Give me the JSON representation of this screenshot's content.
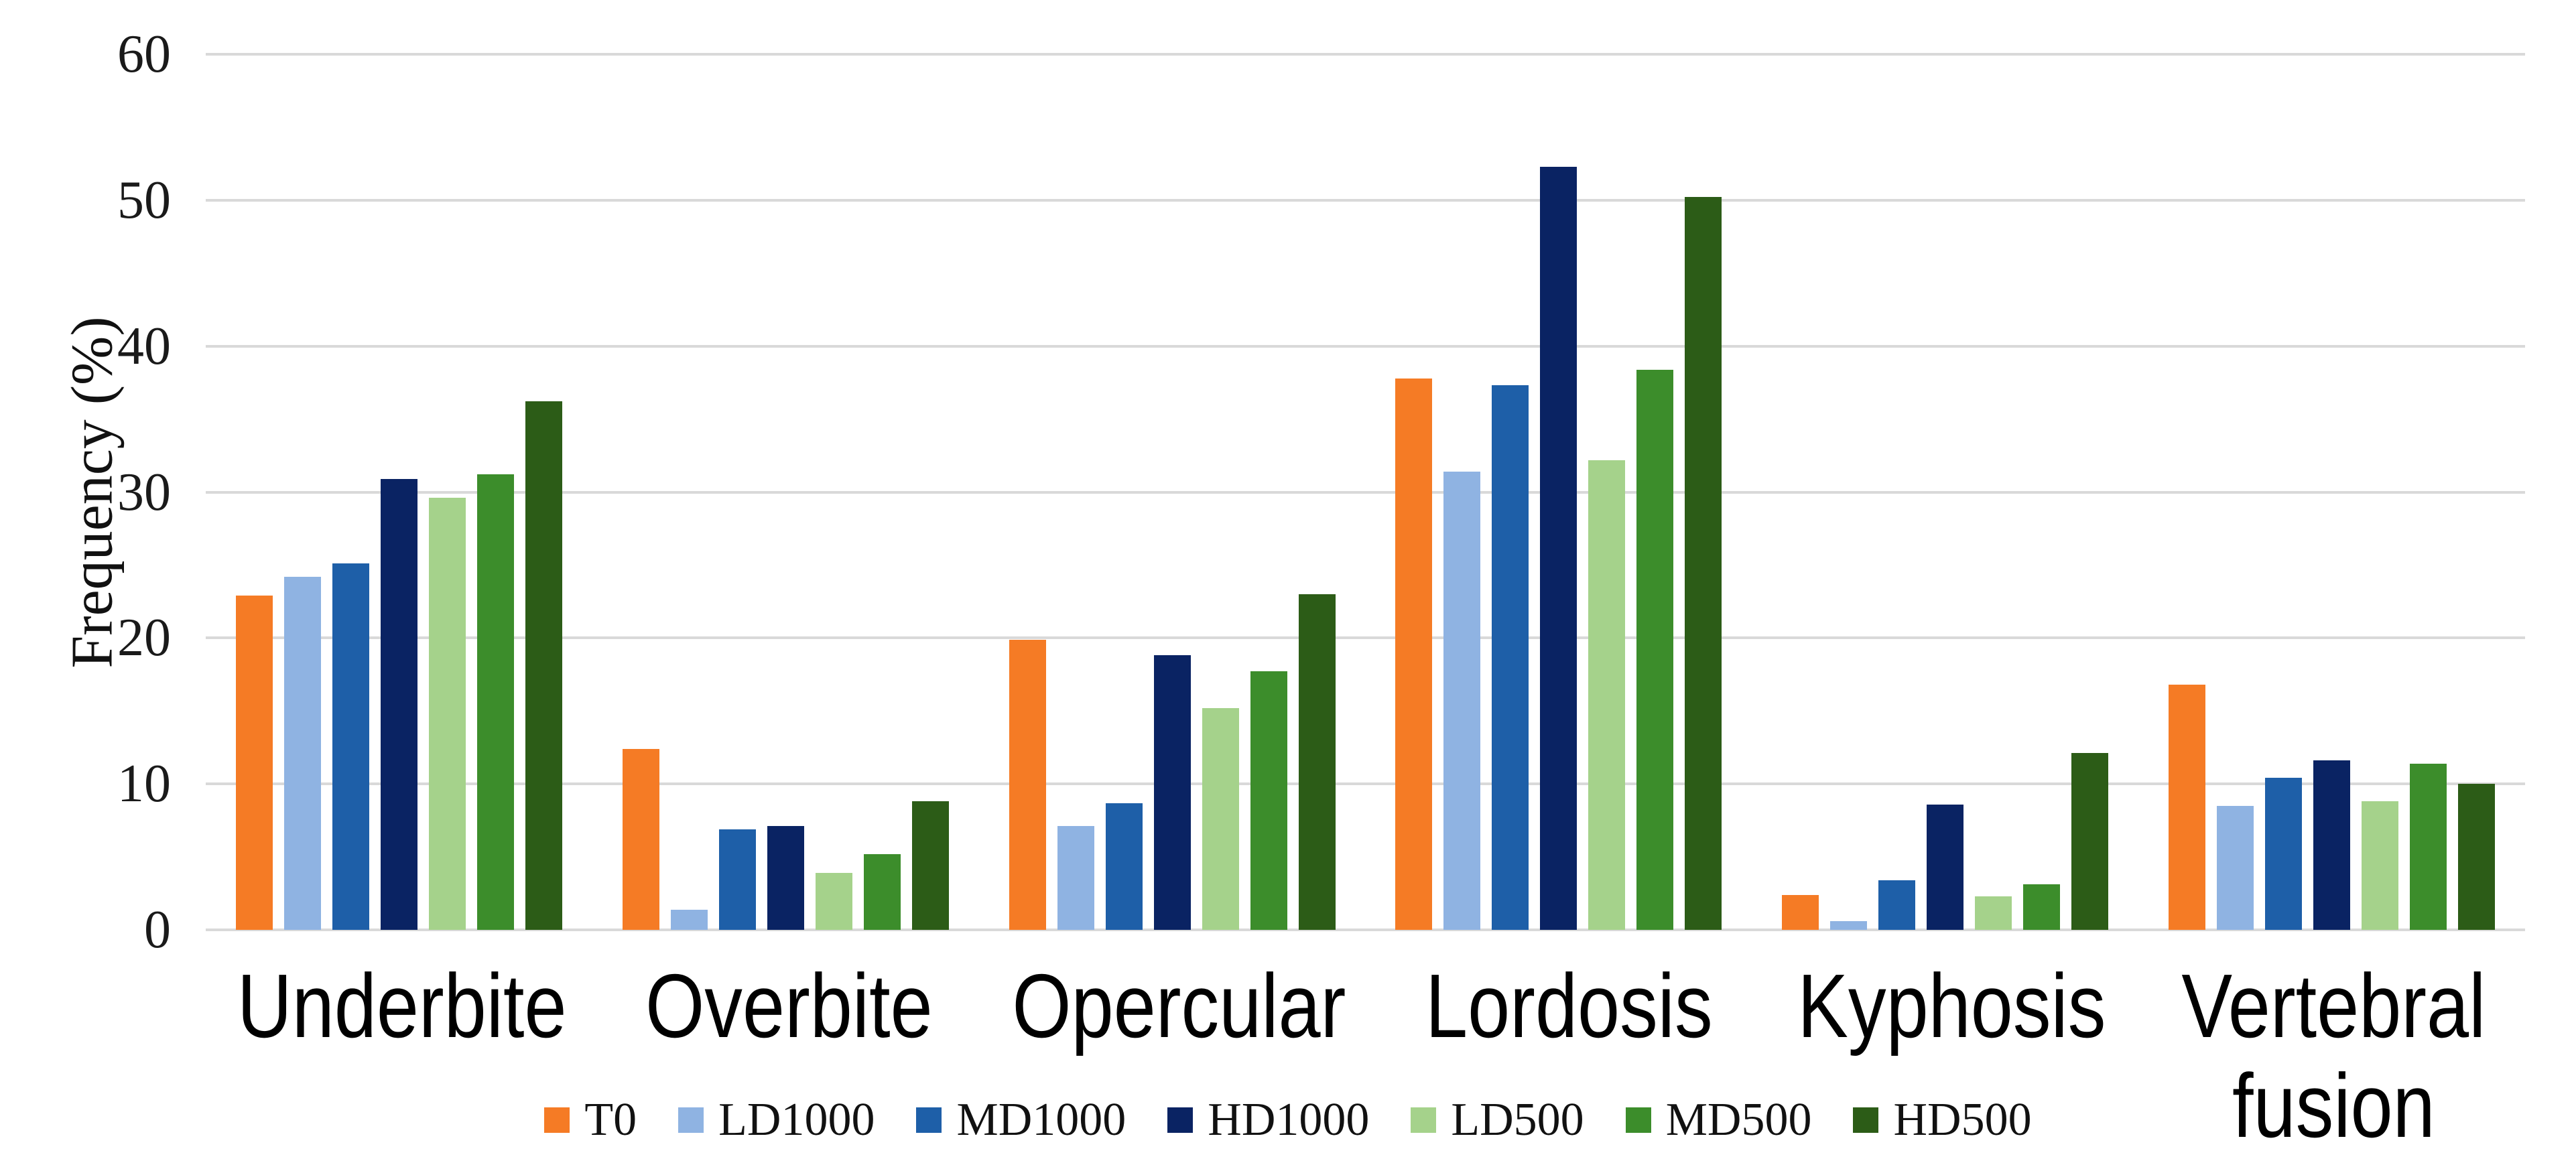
{
  "chart_data": {
    "type": "bar",
    "title": "",
    "ylabel": "Frequency (%)",
    "xlabel": "",
    "ylim": [
      0,
      60
    ],
    "yticks": [
      60,
      50,
      40,
      30,
      20,
      10,
      0
    ],
    "grid": true,
    "gridline_color": "#d9d9d9",
    "background_color": "#ffffff",
    "text_color": "#111111",
    "legend_position": "bottom",
    "categories": [
      "Underbite",
      "Overbite",
      "Opercular",
      "Lordosis",
      "Kyphosis",
      "Vertebral fusion"
    ],
    "x_label_lines": [
      [
        "Underbite"
      ],
      [
        "Overbite"
      ],
      [
        "Opercular"
      ],
      [
        "Lordosis"
      ],
      [
        "Kyphosis"
      ],
      [
        "Vertebral",
        "fusion"
      ]
    ],
    "series": [
      {
        "name": "T0",
        "color": "#f57b25",
        "values": [
          22.9,
          12.4,
          19.9,
          37.8,
          2.4,
          16.8
        ]
      },
      {
        "name": "LD1000",
        "color": "#8fb3e2",
        "values": [
          24.2,
          1.4,
          7.1,
          31.4,
          0.6,
          8.5
        ]
      },
      {
        "name": "MD1000",
        "color": "#1e5fa8",
        "values": [
          25.1,
          6.9,
          8.7,
          37.3,
          3.4,
          10.4
        ]
      },
      {
        "name": "HD1000",
        "color": "#0a2363",
        "values": [
          30.9,
          7.1,
          18.8,
          52.3,
          8.6,
          11.6
        ]
      },
      {
        "name": "LD500",
        "color": "#a5d28b",
        "values": [
          29.6,
          3.9,
          15.2,
          32.2,
          2.3,
          8.8
        ]
      },
      {
        "name": "MD500",
        "color": "#3c8d2b",
        "values": [
          31.2,
          5.2,
          17.7,
          38.4,
          3.1,
          11.4
        ]
      },
      {
        "name": "HD500",
        "color": "#2c5c17",
        "values": [
          36.2,
          8.8,
          23.0,
          50.2,
          12.1,
          10.0
        ]
      }
    ]
  }
}
